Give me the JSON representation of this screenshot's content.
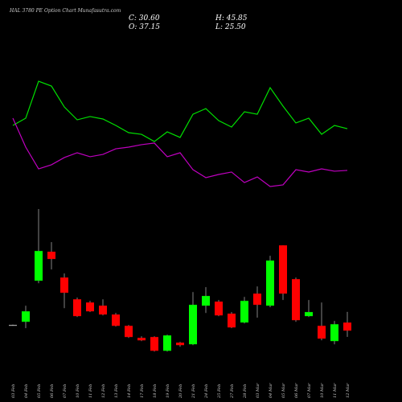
{
  "chart_data": {
    "type": "candlestick",
    "title": "HAL 3780 PE Option Chart Munafasutra.com",
    "summary": {
      "close": "C: 30.60",
      "high": "H: 45.85",
      "open": "O: 37.15",
      "low": "L: 25.50"
    },
    "categories": [
      "03 Feb",
      "04 Feb",
      "05 Feb",
      "06 Feb",
      "07 Feb",
      "10 Feb",
      "11 Feb",
      "12 Feb",
      "13 Feb",
      "14 Feb",
      "17 Feb",
      "18 Feb",
      "19 Feb",
      "20 Feb",
      "21 Feb",
      "24 Feb",
      "25 Feb",
      "27 Feb",
      "28 Feb",
      "03 Mar",
      "04 Mar",
      "05 Mar",
      "06 Mar",
      "07 Mar",
      "10 Mar",
      "11 Mar",
      "12 Mar"
    ],
    "open": [
      35.2,
      37.8,
      71.2,
      94.8,
      73.8,
      56.1,
      53.5,
      50.9,
      43.7,
      34.5,
      24.7,
      25.4,
      14.2,
      20.8,
      19.5,
      50.9,
      54.2,
      44.4,
      37.2,
      60.7,
      50.9,
      100.0,
      72.5,
      42.4,
      34.5,
      22.1,
      37.15
    ],
    "high": [
      35.5,
      50.9,
      129.5,
      102.6,
      77.1,
      57.5,
      54.8,
      56.1,
      45.0,
      35.2,
      26.0,
      26.0,
      27.3,
      21.4,
      62.0,
      66.0,
      55.5,
      45.7,
      58.1,
      66.6,
      91.5,
      100.0,
      73.8,
      55.5,
      53.5,
      38.5,
      45.85
    ],
    "low": [
      34.9,
      32.6,
      69.2,
      80.4,
      48.9,
      41.7,
      45.7,
      43.0,
      33.9,
      24.7,
      22.1,
      13.6,
      13.6,
      17.5,
      18.8,
      45.0,
      42.4,
      32.6,
      36.5,
      41.1,
      49.6,
      55.5,
      37.8,
      41.7,
      22.7,
      19.5,
      25.5
    ],
    "close": [
      35.2,
      46.3,
      95.4,
      88.9,
      61.4,
      42.4,
      46.3,
      43.7,
      34.5,
      25.4,
      22.7,
      14.2,
      26.7,
      18.8,
      51.6,
      58.8,
      43.0,
      33.2,
      54.8,
      51.6,
      87.6,
      60.7,
      39.1,
      45.7,
      24.1,
      35.8,
      30.6
    ],
    "up_color": "#00ff00",
    "down_color": "#ff0000",
    "ylim": [
      0,
      140
    ],
    "indicator_ylim": [
      0,
      100
    ],
    "indicators": [
      {
        "color": "#00e000",
        "values": [
          55.3,
          60.6,
          87.6,
          84.1,
          68.8,
          59.4,
          61.8,
          60.0,
          55.3,
          50.0,
          48.8,
          43.5,
          50.6,
          46.5,
          63.5,
          67.6,
          58.8,
          54.1,
          65.3,
          63.5,
          82.9,
          69.4,
          57.1,
          60.6,
          48.8,
          55.3,
          52.9
        ]
      },
      {
        "color": "#c000c0",
        "values": [
          60.6,
          39.4,
          23.5,
          26.5,
          31.8,
          35.3,
          32.4,
          34.1,
          38.2,
          39.4,
          41.2,
          42.4,
          32.4,
          35.3,
          22.9,
          17.1,
          19.4,
          21.2,
          13.5,
          17.6,
          10.6,
          11.8,
          22.9,
          21.2,
          23.5,
          21.8,
          22.4
        ]
      }
    ]
  }
}
